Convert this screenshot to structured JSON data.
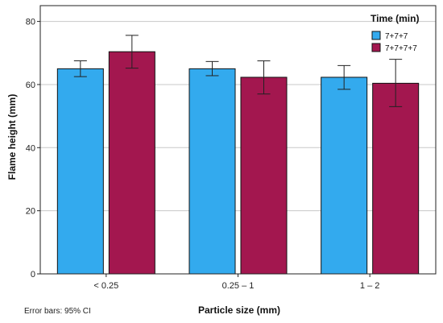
{
  "chart_data": {
    "type": "bar",
    "title": "",
    "xlabel": "Particle size (mm)",
    "ylabel": "Flame height (mm)",
    "ylim": [
      0,
      85
    ],
    "yticks": [
      0,
      20,
      40,
      60,
      80
    ],
    "categories": [
      "< 0.25",
      "0.25 – 1",
      "1 – 2"
    ],
    "legend_title": "Time (min)",
    "legend_position": "top-right",
    "grid": "horizontal",
    "series": [
      {
        "name": "7+7+7",
        "color": "#33aaee",
        "values": [
          65.0,
          65.0,
          62.3
        ],
        "ci_low": [
          62.5,
          62.8,
          58.5
        ],
        "ci_high": [
          67.5,
          67.3,
          66.0
        ]
      },
      {
        "name": "7+7+7+7",
        "color": "#a3174f",
        "values": [
          70.4,
          62.3,
          60.4
        ],
        "ci_low": [
          65.2,
          57.0,
          53.0
        ],
        "ci_high": [
          75.6,
          67.5,
          68.0
        ]
      }
    ],
    "note": "Error bars: 95% CI"
  }
}
